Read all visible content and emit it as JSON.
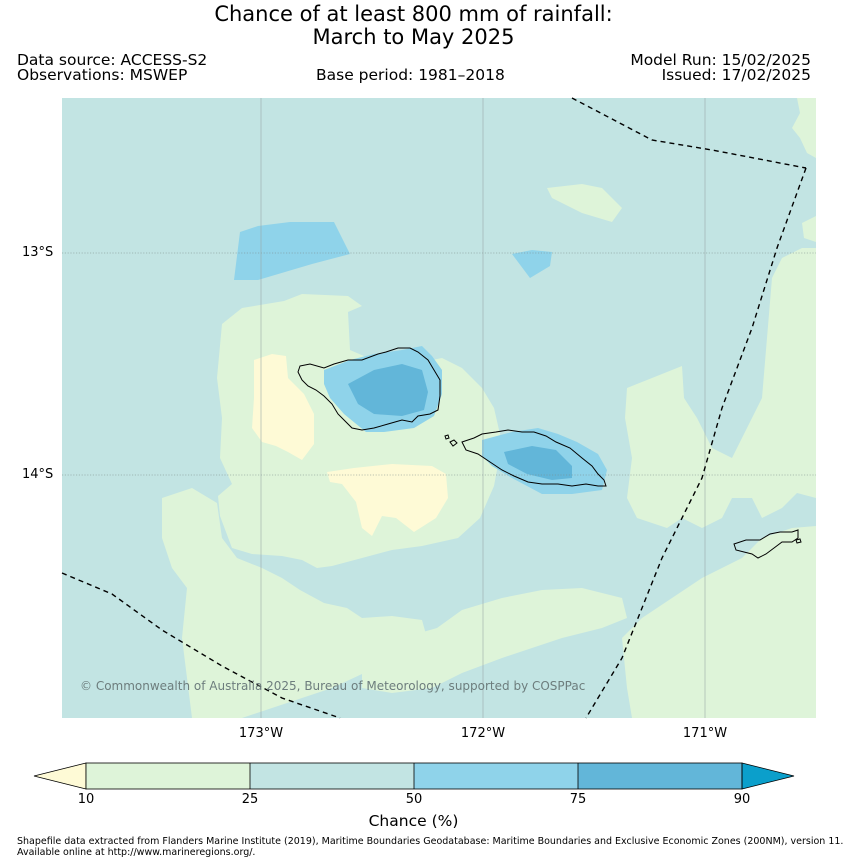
{
  "title": {
    "line1": "Chance of at least 800 mm of rainfall:",
    "line2": "March to May 2025"
  },
  "header": {
    "data_source": "Data source: ACCESS-S2",
    "observations": "Observations: MSWEP",
    "base_period": "Base period: 1981–2018",
    "model_run": "Model Run: 15/02/2025",
    "issued": "Issued: 17/02/2025"
  },
  "map": {
    "lat_labels": [
      "13°S",
      "14°S"
    ],
    "lon_labels": [
      "173°W",
      "172°W",
      "171°W"
    ],
    "copyright": "© Commonwealth of Australia 2025, Bureau of Meteorology, supported by COSPPac",
    "colors": {
      "lt10": "#fefad6",
      "c10_25": "#def4d9",
      "c25_50": "#c2e4e3",
      "c50_75": "#8fd3ea",
      "c75_90": "#62b6d9",
      "gt90": "#0b9fcb"
    }
  },
  "colorbar": {
    "ticks": [
      "10",
      "25",
      "50",
      "75",
      "90"
    ],
    "label": "Chance (%)"
  },
  "footer": {
    "line1": "Shapefile data extracted from Flanders Marine Institute (2019), Maritime Boundaries Geodatabase: Maritime Boundaries and Exclusive Economic Zones (200NM), version 11.",
    "line2": "Available online at http://www.marineregions.org/."
  }
}
